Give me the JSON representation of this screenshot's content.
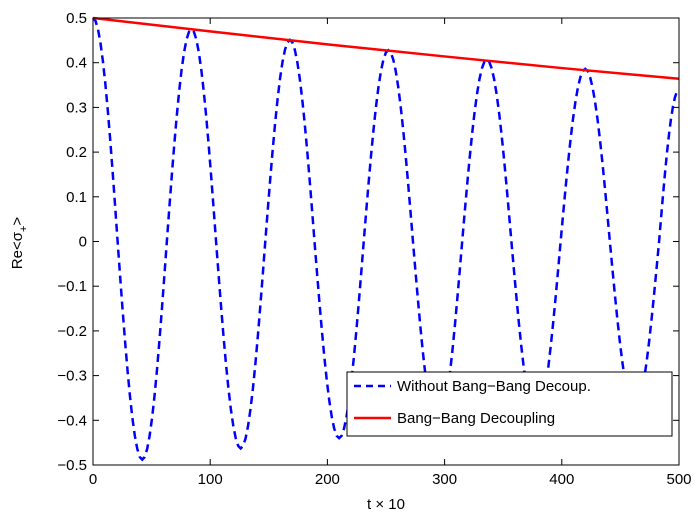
{
  "chart_data": {
    "type": "line",
    "title": "",
    "xlabel": "t × 10",
    "ylabel_main": "Re<σ",
    "ylabel_sub": "+",
    "ylabel_end": ">",
    "xlim": [
      0,
      500
    ],
    "ylim": [
      -0.5,
      0.5
    ],
    "xticks": [
      0,
      100,
      200,
      300,
      400,
      500
    ],
    "yticks": [
      -0.5,
      -0.4,
      -0.3,
      -0.2,
      -0.1,
      0,
      0.1,
      0.2,
      0.3,
      0.4,
      0.5
    ],
    "xtick_labels": [
      "0",
      "100",
      "200",
      "300",
      "400",
      "500"
    ],
    "ytick_labels": [
      "−0.5",
      "−0.4",
      "−0.3",
      "−0.2",
      "−0.1",
      "0",
      "0.1",
      "0.2",
      "0.3",
      "0.4",
      "0.5"
    ],
    "grid": false,
    "legend_position": "bottom-right",
    "series": [
      {
        "name": "Without Bang−Bang Decoup.",
        "color": "#0000ff",
        "style": "dashed",
        "x": [
          0,
          21,
          42,
          63,
          84,
          105,
          126,
          147,
          168,
          189,
          210,
          231,
          252,
          273,
          294,
          315,
          336,
          357,
          378,
          399,
          420,
          441,
          462,
          483,
          500
        ],
        "y": [
          0.5,
          0.0,
          -0.488,
          0.0,
          0.475,
          0.0,
          -0.463,
          0.0,
          0.451,
          0.0,
          -0.44,
          0.0,
          0.428,
          0.0,
          -0.418,
          0.0,
          0.407,
          0.0,
          -0.397,
          0.0,
          0.386,
          0.0,
          -0.377,
          0.0,
          0.34
        ]
      },
      {
        "name": "Bang−Bang Decoupling",
        "color": "#ff0000",
        "style": "solid",
        "x": [
          0,
          100,
          200,
          300,
          400,
          500
        ],
        "y": [
          0.5,
          0.47,
          0.441,
          0.414,
          0.388,
          0.364
        ]
      }
    ]
  }
}
